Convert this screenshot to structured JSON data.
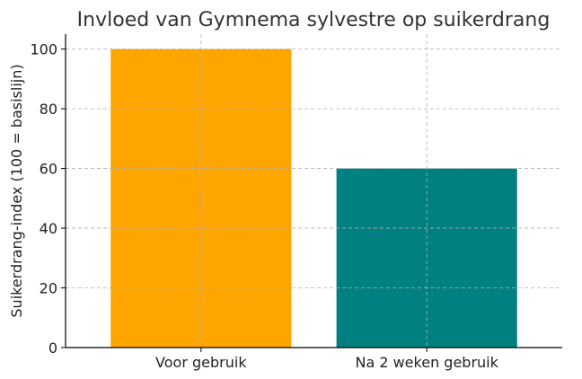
{
  "chart_data": {
    "type": "bar",
    "title": "Invloed van Gymnema sylvestre op suikerdrang",
    "xlabel": "",
    "ylabel": "Suikerdrang-index (100 = basislijn)",
    "categories": [
      "Voor gebruik",
      "Na 2 weken gebruik"
    ],
    "values": [
      100,
      60
    ],
    "colors": [
      "#FFA500",
      "#008080"
    ],
    "ylim": [
      0,
      105
    ],
    "yticks": [
      0,
      20,
      40,
      60,
      80,
      100
    ],
    "grid": true,
    "legend": "none"
  }
}
